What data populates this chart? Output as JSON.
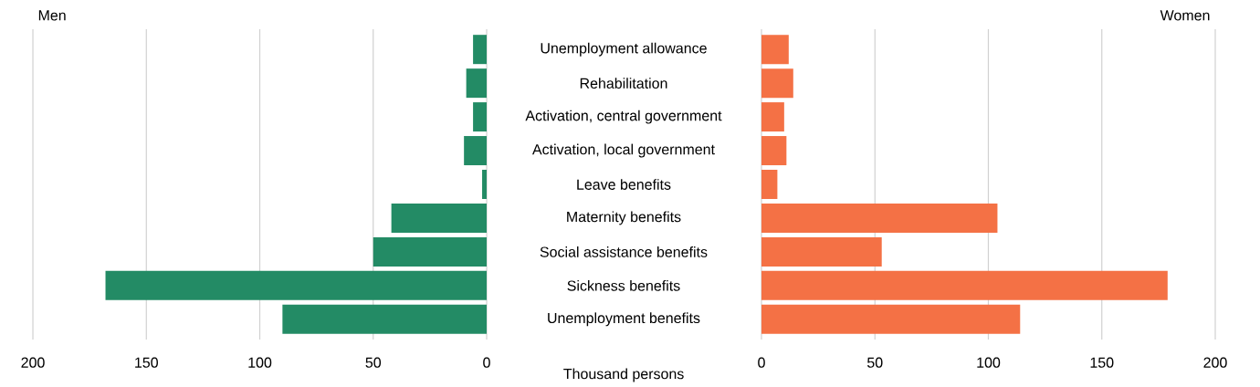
{
  "chart_data": [
    {
      "type": "bar",
      "orientation": "horizontal",
      "title": "Men",
      "xlabel": "Thousand persons",
      "categories": [
        "Unemployment allowance",
        "Rehabilitation",
        "Activation, central government",
        "Activation, local government",
        "Leave benefits",
        "Maternity benefits",
        "Social assistance benefits",
        "Sickness benefits",
        "Unemployment benefits"
      ],
      "values": [
        6,
        9,
        6,
        10,
        2,
        42,
        50,
        168,
        90
      ],
      "color": "#238b65",
      "xlim": [
        200,
        0
      ],
      "xticks": [
        200,
        150,
        100,
        50,
        0
      ],
      "grid": "x"
    },
    {
      "type": "bar",
      "orientation": "horizontal",
      "title": "Women",
      "categories": [
        null,
        null,
        null,
        null,
        null,
        null,
        null,
        null,
        null
      ],
      "values": [
        12,
        14,
        10,
        11,
        7,
        104,
        53,
        179,
        114
      ],
      "color": "#f47145",
      "xlim": [
        0,
        200
      ],
      "xticks": [
        0,
        50,
        100,
        150,
        200
      ],
      "grid": "x",
      "tick_labels": "x"
    }
  ]
}
